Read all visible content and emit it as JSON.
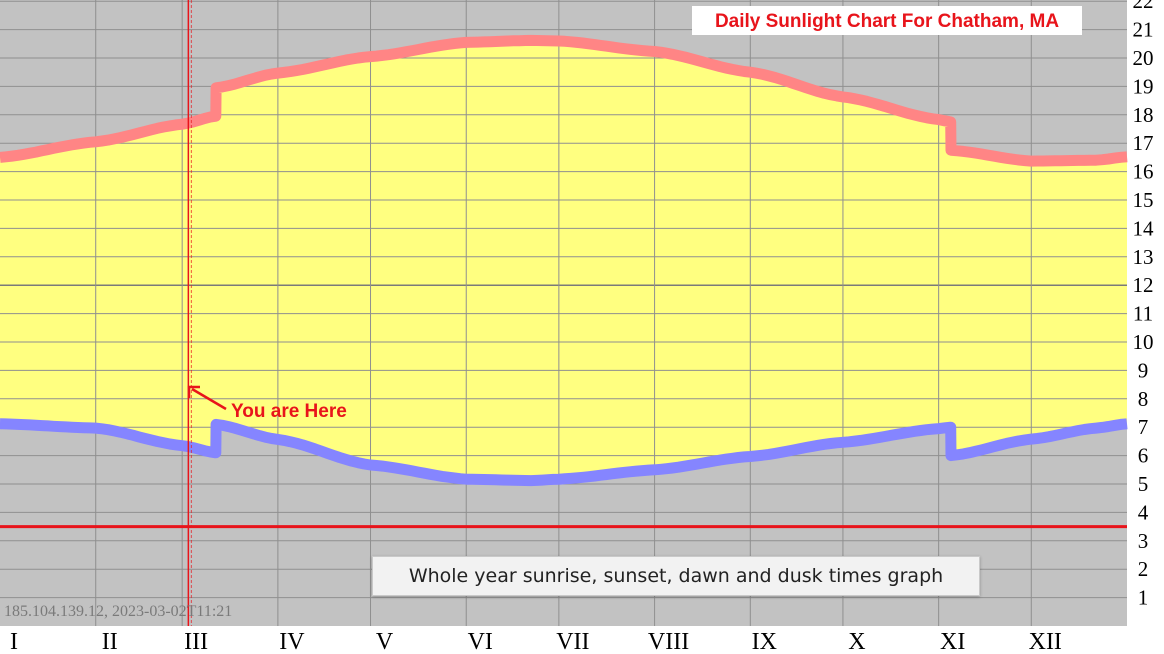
{
  "chart_data": {
    "type": "area",
    "title": "Daily Sunlight Chart For Chatham, MA",
    "xlabel": "",
    "ylabel": "",
    "x_tick_labels": [
      "I",
      "II",
      "III",
      "IV",
      "V",
      "VI",
      "VII",
      "VIII",
      "IX",
      "X",
      "XI",
      "XII"
    ],
    "y_tick_labels": [
      "1",
      "2",
      "3",
      "4",
      "5",
      "6",
      "7",
      "8",
      "9",
      "10",
      "11",
      "12",
      "13",
      "14",
      "15",
      "16",
      "17",
      "18",
      "19",
      "20",
      "21",
      "22"
    ],
    "ylim": [
      0,
      22
    ],
    "xlim": [
      0,
      365
    ],
    "grid": true,
    "dst_start_day": 70,
    "dst_end_day": 308,
    "current_day": 61,
    "series": [
      {
        "name": "",
        "x": [
          0,
          31,
          59,
          69.9,
          70,
          90,
          120,
          151,
          172,
          181,
          212,
          243,
          273,
          304,
          307.9,
          308,
          334,
          355,
          365
        ],
        "values": [
          16.5,
          17.05,
          17.67,
          17.95,
          18.95,
          19.47,
          20.05,
          20.55,
          20.62,
          20.6,
          20.23,
          19.5,
          18.63,
          17.83,
          17.75,
          16.75,
          16.37,
          16.4,
          16.52
        ]
      },
      {
        "name": "",
        "x": [
          0,
          31,
          59,
          69.9,
          70,
          90,
          120,
          151,
          172,
          181,
          212,
          243,
          273,
          304,
          307.9,
          308,
          334,
          355,
          365
        ],
        "values": [
          7.12,
          6.97,
          6.35,
          6.1,
          7.1,
          6.57,
          5.67,
          5.17,
          5.12,
          5.17,
          5.5,
          5.97,
          6.47,
          6.95,
          7.0,
          6.0,
          6.58,
          6.97,
          7.12
        ]
      }
    ],
    "hlines": [
      3.5
    ],
    "annotation": "You are Here",
    "colors": {
      "background": "#c2c2c2",
      "daylight": "#ffff80",
      "sunset": "#ff8585",
      "sunrise": "#8585ff",
      "marker": "#e8141b",
      "grid": "#8f8f8f"
    }
  },
  "watermark": "185.104.139.12, 2023-03-02T11:21",
  "tooltip": "Whole year sunrise, sunset, dawn and dusk times graph"
}
